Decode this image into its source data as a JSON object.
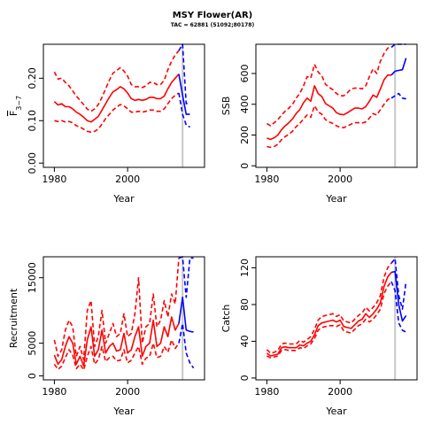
{
  "title": "MSY Flower(AR)",
  "subtitle": "TAC = 62881 (51092;80178)",
  "colors": {
    "historic": "#ff0000",
    "projection": "#0000ff",
    "vline": "#c8c8c8",
    "axis": "#000000"
  },
  "chart_data": [
    {
      "id": "f",
      "type": "line",
      "xlabel": "Year",
      "ylabel": "F̄3−7",
      "ylabel_main": "F",
      "ylabel_sub": "3−7",
      "xlim": [
        1977,
        2021
      ],
      "ylim": [
        -0.01,
        0.28
      ],
      "xticks": [
        "1980",
        "2000"
      ],
      "xtick_values": [
        1980,
        2000
      ],
      "yticks": [
        "0.00",
        "0.10",
        "0.20"
      ],
      "ytick_values": [
        0,
        0.1,
        0.2
      ],
      "vline_x": 2015,
      "historic": {
        "x": [
          1980,
          1981,
          1982,
          1983,
          1984,
          1985,
          1986,
          1987,
          1988,
          1989,
          1990,
          1991,
          1992,
          1993,
          1994,
          1995,
          1996,
          1997,
          1998,
          1999,
          2000,
          2001,
          2002,
          2003,
          2004,
          2005,
          2006,
          2007,
          2008,
          2009,
          2010,
          2011,
          2012,
          2013,
          2014
        ],
        "mid": [
          0.145,
          0.137,
          0.14,
          0.133,
          0.133,
          0.128,
          0.12,
          0.115,
          0.108,
          0.1,
          0.097,
          0.103,
          0.11,
          0.125,
          0.14,
          0.155,
          0.168,
          0.173,
          0.18,
          0.175,
          0.165,
          0.152,
          0.148,
          0.15,
          0.148,
          0.15,
          0.155,
          0.155,
          0.152,
          0.152,
          0.158,
          0.175,
          0.19,
          0.2,
          0.21
        ],
        "upper": [
          0.215,
          0.198,
          0.2,
          0.19,
          0.182,
          0.17,
          0.158,
          0.148,
          0.138,
          0.127,
          0.122,
          0.128,
          0.138,
          0.155,
          0.175,
          0.195,
          0.212,
          0.218,
          0.225,
          0.217,
          0.205,
          0.185,
          0.18,
          0.18,
          0.178,
          0.182,
          0.19,
          0.19,
          0.185,
          0.185,
          0.195,
          0.22,
          0.24,
          0.255,
          0.265
        ],
        "lower": [
          0.1,
          0.098,
          0.1,
          0.097,
          0.098,
          0.095,
          0.088,
          0.085,
          0.08,
          0.075,
          0.073,
          0.075,
          0.08,
          0.092,
          0.105,
          0.115,
          0.125,
          0.132,
          0.138,
          0.135,
          0.128,
          0.12,
          0.12,
          0.122,
          0.12,
          0.122,
          0.125,
          0.125,
          0.122,
          0.122,
          0.128,
          0.14,
          0.152,
          0.16,
          0.165
        ]
      },
      "projection": {
        "x": [
          2014,
          2015,
          2016,
          2017
        ],
        "mid": [
          0.21,
          0.16,
          0.115,
          0.115
        ],
        "upper": [
          0.265,
          0.3,
          0.14,
          0.14
        ],
        "lower": [
          0.165,
          0.115,
          0.09,
          0.085
        ]
      }
    },
    {
      "id": "ssb",
      "type": "line",
      "xlabel": "Year",
      "ylabel": "SSB",
      "xlim": [
        1977,
        2021
      ],
      "ylim": [
        -10,
        790
      ],
      "xticks": [
        "1980",
        "2000"
      ],
      "xtick_values": [
        1980,
        2000
      ],
      "yticks": [
        "0",
        "200",
        "400",
        "600"
      ],
      "ytick_values": [
        0,
        200,
        400,
        600
      ],
      "vline_x": 2015,
      "historic": {
        "x": [
          1980,
          1981,
          1982,
          1983,
          1984,
          1985,
          1986,
          1987,
          1988,
          1989,
          1990,
          1991,
          1992,
          1993,
          1994,
          1995,
          1996,
          1997,
          1998,
          1999,
          2000,
          2001,
          2002,
          2003,
          2004,
          2005,
          2006,
          2007,
          2008,
          2009,
          2010,
          2011,
          2012,
          2013,
          2014
        ],
        "mid": [
          180,
          172,
          182,
          200,
          235,
          260,
          280,
          305,
          340,
          365,
          410,
          440,
          420,
          520,
          470,
          450,
          405,
          390,
          375,
          345,
          335,
          332,
          345,
          360,
          375,
          375,
          370,
          385,
          420,
          460,
          445,
          500,
          560,
          590,
          590
        ],
        "upper": [
          275,
          260,
          280,
          300,
          330,
          355,
          375,
          400,
          440,
          470,
          520,
          580,
          570,
          660,
          610,
          585,
          530,
          510,
          495,
          470,
          455,
          455,
          475,
          500,
          505,
          505,
          500,
          520,
          580,
          630,
          600,
          680,
          730,
          765,
          770
        ],
        "lower": [
          125,
          120,
          125,
          140,
          170,
          190,
          205,
          225,
          255,
          275,
          305,
          330,
          315,
          390,
          350,
          335,
          300,
          285,
          275,
          260,
          250,
          248,
          260,
          270,
          280,
          280,
          278,
          285,
          310,
          340,
          330,
          365,
          400,
          430,
          440
        ]
      },
      "projection": {
        "x": [
          2014,
          2015,
          2016,
          2017,
          2018
        ],
        "mid": [
          590,
          615,
          620,
          625,
          700
        ],
        "upper": [
          770,
          790,
          790,
          795,
          800
        ],
        "lower": [
          440,
          455,
          470,
          440,
          435
        ]
      }
    },
    {
      "id": "recruitment",
      "type": "line",
      "xlabel": "Year",
      "ylabel": "Recruitment",
      "xlim": [
        1977,
        2021
      ],
      "ylim": [
        -600,
        18200
      ],
      "xticks": [
        "1980",
        "2000"
      ],
      "xtick_values": [
        1980,
        2000
      ],
      "yticks": [
        "0",
        "5000",
        "15000"
      ],
      "ytick_values": [
        0,
        5000,
        15000
      ],
      "vline_x": 2015,
      "historic": {
        "x": [
          1980,
          1981,
          1982,
          1983,
          1984,
          1985,
          1986,
          1987,
          1988,
          1989,
          1990,
          1991,
          1992,
          1993,
          1994,
          1995,
          1996,
          1997,
          1998,
          1999,
          2000,
          2001,
          2002,
          2003,
          2004,
          2005,
          2006,
          2007,
          2008,
          2009,
          2010,
          2011,
          2012,
          2013,
          2014
        ],
        "mid": [
          3200,
          1800,
          2500,
          4500,
          6000,
          5000,
          1800,
          3000,
          1500,
          5500,
          7500,
          3000,
          4000,
          7000,
          3500,
          4500,
          5000,
          3800,
          4000,
          6500,
          3500,
          4000,
          6000,
          7500,
          3000,
          4500,
          5000,
          8500,
          4500,
          5000,
          7500,
          6000,
          9000,
          7000,
          8000
        ],
        "upper": [
          5500,
          3000,
          4000,
          7000,
          8500,
          7500,
          3000,
          4500,
          2500,
          10000,
          11500,
          4500,
          6000,
          10000,
          5000,
          6500,
          8000,
          6000,
          6500,
          9500,
          6000,
          6500,
          9500,
          15000,
          5000,
          7500,
          8000,
          12500,
          7500,
          8500,
          11500,
          9000,
          12500,
          11000,
          18000
        ],
        "lower": [
          1800,
          1000,
          1500,
          2800,
          4000,
          3200,
          1100,
          1800,
          900,
          3000,
          4500,
          1800,
          2500,
          4500,
          2200,
          2800,
          3000,
          2300,
          2400,
          4000,
          2000,
          2400,
          3500,
          4500,
          1800,
          2700,
          3000,
          5000,
          2800,
          3000,
          4500,
          3600,
          5500,
          4200,
          5000
        ]
      },
      "projection": {
        "x": [
          2014,
          2015,
          2016,
          2017,
          2018
        ],
        "mid": [
          8000,
          12000,
          7000,
          6800,
          6700
        ],
        "upper": [
          18000,
          18500,
          12000,
          18000,
          18000
        ],
        "lower": [
          5000,
          8000,
          3500,
          2000,
          1200
        ]
      }
    },
    {
      "id": "catch",
      "type": "line",
      "xlabel": "Year",
      "ylabel": "Catch",
      "xlim": [
        1977,
        2021
      ],
      "ylim": [
        -2,
        132
      ],
      "xticks": [
        "1980",
        "2000"
      ],
      "xtick_values": [
        1980,
        2000
      ],
      "yticks": [
        "0",
        "40",
        "80",
        "120"
      ],
      "ytick_values": [
        0,
        40,
        80,
        120
      ],
      "vline_x": 2015,
      "historic": {
        "x": [
          1980,
          1981,
          1982,
          1983,
          1984,
          1985,
          1986,
          1987,
          1988,
          1989,
          1990,
          1991,
          1992,
          1993,
          1994,
          1995,
          1996,
          1997,
          1998,
          1999,
          2000,
          2001,
          2002,
          2003,
          2004,
          2005,
          2006,
          2007,
          2008,
          2009,
          2010,
          2011,
          2012,
          2013,
          2014
        ],
        "mid": [
          27,
          24,
          25,
          26,
          33,
          34,
          33,
          33,
          33,
          36,
          35,
          38,
          40,
          47,
          57,
          60,
          61,
          62,
          63,
          61,
          63,
          56,
          55,
          54,
          58,
          62,
          64,
          70,
          66,
          70,
          75,
          82,
          100,
          110,
          115
        ],
        "upper": [
          31,
          27,
          28,
          30,
          37,
          38,
          37,
          37,
          37,
          41,
          39,
          42,
          45,
          53,
          63,
          67,
          68,
          69,
          70,
          67,
          69,
          62,
          61,
          60,
          64,
          68,
          71,
          77,
          73,
          77,
          82,
          90,
          110,
          120,
          125
        ],
        "lower": [
          24,
          22,
          23,
          24,
          30,
          31,
          30,
          30,
          30,
          33,
          32,
          35,
          37,
          43,
          52,
          55,
          56,
          57,
          57,
          56,
          58,
          51,
          50,
          49,
          53,
          57,
          59,
          64,
          61,
          64,
          69,
          75,
          92,
          100,
          105
        ]
      },
      "projection": {
        "x": [
          2014,
          2015,
          2016,
          2017,
          2018
        ],
        "mid": [
          115,
          116,
          80,
          62,
          68
        ],
        "upper": [
          125,
          130,
          90,
          75,
          105
        ],
        "lower": [
          105,
          95,
          60,
          52,
          50
        ]
      }
    }
  ]
}
